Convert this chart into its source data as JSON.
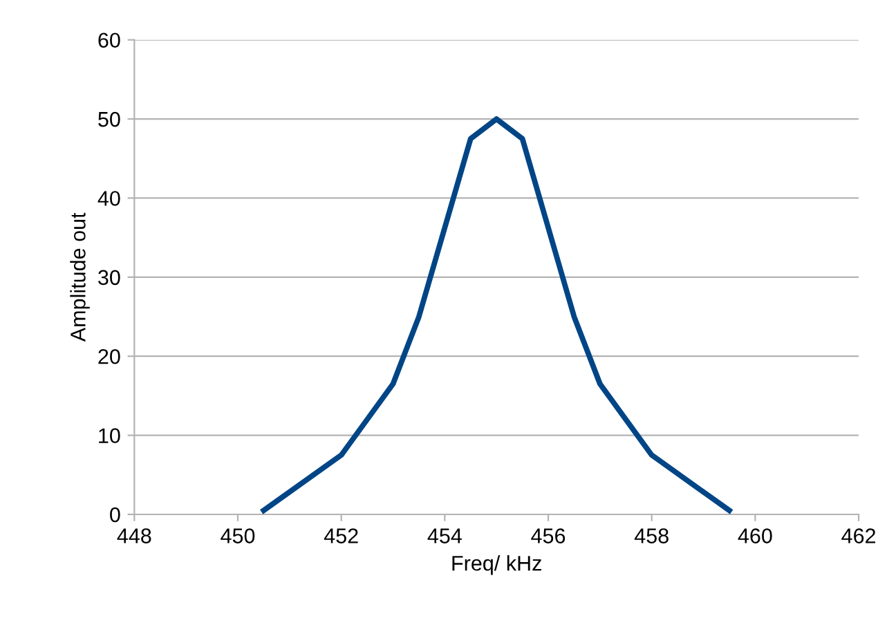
{
  "chart_data": {
    "type": "line",
    "xlabel": "Freq/ kHz",
    "ylabel": "Amplitude out",
    "x": [
      450.5,
      452,
      453,
      453.5,
      454.5,
      455,
      455.5,
      456.5,
      457,
      458,
      459.5
    ],
    "series": [
      {
        "color": "#004586",
        "values": [
          0.5,
          7.5,
          16.5,
          25,
          47.5,
          50,
          47.5,
          25,
          16.5,
          7.5,
          0.5
        ]
      }
    ],
    "xlim": [
      448,
      462
    ],
    "xticks": [
      448,
      450,
      452,
      454,
      456,
      458,
      460,
      462
    ],
    "ylim": [
      0,
      60
    ],
    "yticks": [
      0,
      10,
      20,
      30,
      40,
      50,
      60
    ],
    "grid": "y",
    "marker": "none",
    "line_style": "solid"
  }
}
